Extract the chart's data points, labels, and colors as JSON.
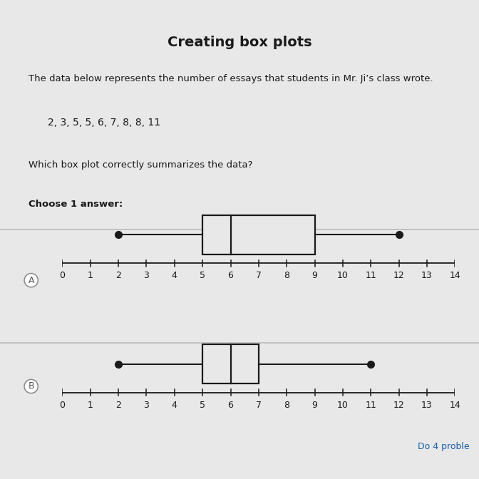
{
  "title": "Creating box plots",
  "description_line1": "The data below represents the number of essays that students in Mr. Ji’s class wrote.",
  "data_display": "2, 3, 5, 5, 6, 7, 8, 8, 11",
  "question": "Which box plot correctly summarizes the data?",
  "answer_prompt": "Choose 1 answer:",
  "bg_color": "#e8e8e8",
  "title_bg_color": "#dcdcdc",
  "top_bar_color": "#1a1a1a",
  "separator_color": "#bbbbbb",
  "box_plots": [
    {
      "label": "A",
      "min": 2,
      "q1": 5,
      "median": 6,
      "q3": 9,
      "max": 12,
      "xmin": 0,
      "xmax": 14
    },
    {
      "label": "B",
      "min": 2,
      "q1": 5,
      "median": 6,
      "q3": 7,
      "max": 11,
      "xmin": 0,
      "xmax": 14
    }
  ],
  "header_color": "#1a1a1a",
  "line_color": "#1a1a1a",
  "box_face_color": "#e8e8e8",
  "box_edge_color": "#1a1a1a",
  "whisker_dot_color": "#1a1a1a",
  "link_color": "#1a5faa"
}
